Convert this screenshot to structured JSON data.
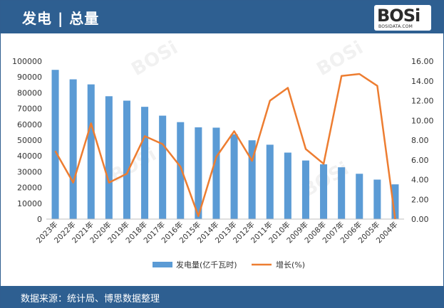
{
  "header": {
    "title": "发电 | 总量"
  },
  "logo": {
    "brand": "BOSi",
    "sub": "BOSIDATA.COM"
  },
  "footer": {
    "source": "数据来源：统计局、博思数据整理"
  },
  "colors": {
    "bar": "#5b9bd5",
    "line": "#ed7d31",
    "header": "#2e5f91"
  },
  "chart_data": {
    "type": "bar",
    "categories": [
      "2023年",
      "2022年",
      "2021年",
      "2020年",
      "2019年",
      "2018年",
      "2017年",
      "2016年",
      "2015年",
      "2014年",
      "2013年",
      "2012年",
      "2011年",
      "2010年",
      "2009年",
      "2008年",
      "2007年",
      "2006年",
      "2005年",
      "2004年"
    ],
    "series": [
      {
        "name": "发电量(亿千瓦时)",
        "type": "bar",
        "axis": "left",
        "values": [
          94500,
          88500,
          85300,
          77800,
          75000,
          71100,
          65500,
          61400,
          58100,
          57900,
          53700,
          49900,
          47100,
          42100,
          37100,
          34700,
          32800,
          28700,
          25000,
          22000
        ]
      },
      {
        "name": "增长(%)",
        "type": "line",
        "axis": "right",
        "values": [
          6.9,
          3.7,
          9.7,
          3.7,
          4.6,
          8.4,
          7.6,
          5.3,
          0.3,
          6.3,
          8.9,
          5.9,
          12.0,
          13.3,
          7.1,
          5.6,
          14.5,
          14.7,
          13.5,
          0.0
        ]
      }
    ],
    "y_left": {
      "ylim": [
        0,
        100000
      ],
      "ticks": [
        "0",
        "10000",
        "20000",
        "30000",
        "40000",
        "50000",
        "60000",
        "70000",
        "80000",
        "90000",
        "100000"
      ]
    },
    "y_right": {
      "ylim": [
        0,
        16
      ],
      "ticks": [
        "0.00",
        "2.00",
        "4.00",
        "6.00",
        "8.00",
        "10.00",
        "12.00",
        "14.00",
        "16.00"
      ]
    },
    "legend_position": "bottom",
    "grid": false
  }
}
